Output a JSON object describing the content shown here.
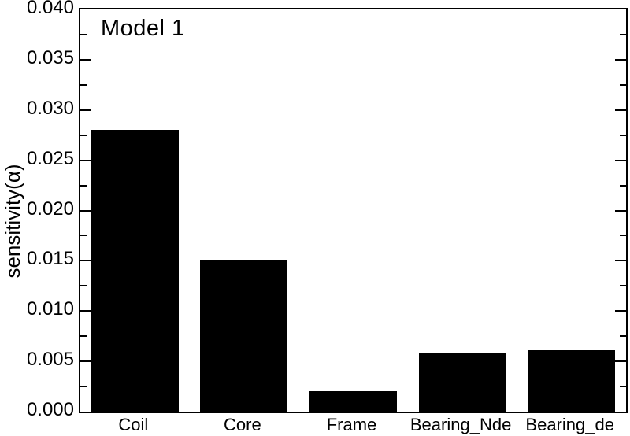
{
  "chart_data": {
    "type": "bar",
    "title": "Model 1",
    "categories": [
      "Coil",
      "Core",
      "Frame",
      "Bearing_Nde",
      "Bearing_de"
    ],
    "values": [
      0.028,
      0.015,
      0.002,
      0.0058,
      0.0061
    ],
    "xlabel": "",
    "ylabel": "sensitivity(α)",
    "ylim": [
      0,
      0.04
    ],
    "y_major_step": 0.005,
    "y_minor_step": 0.0025,
    "y_tick_labels": [
      "0.000",
      "0.005",
      "0.010",
      "0.015",
      "0.020",
      "0.025",
      "0.030",
      "0.035",
      "0.040"
    ],
    "bar_color": "#000000",
    "axis_color": "#000000",
    "background_color": "#ffffff",
    "grid": false,
    "legend": false,
    "bar_width_fraction": 0.8,
    "tick_direction": "in",
    "mirror_y_ticks": true
  }
}
